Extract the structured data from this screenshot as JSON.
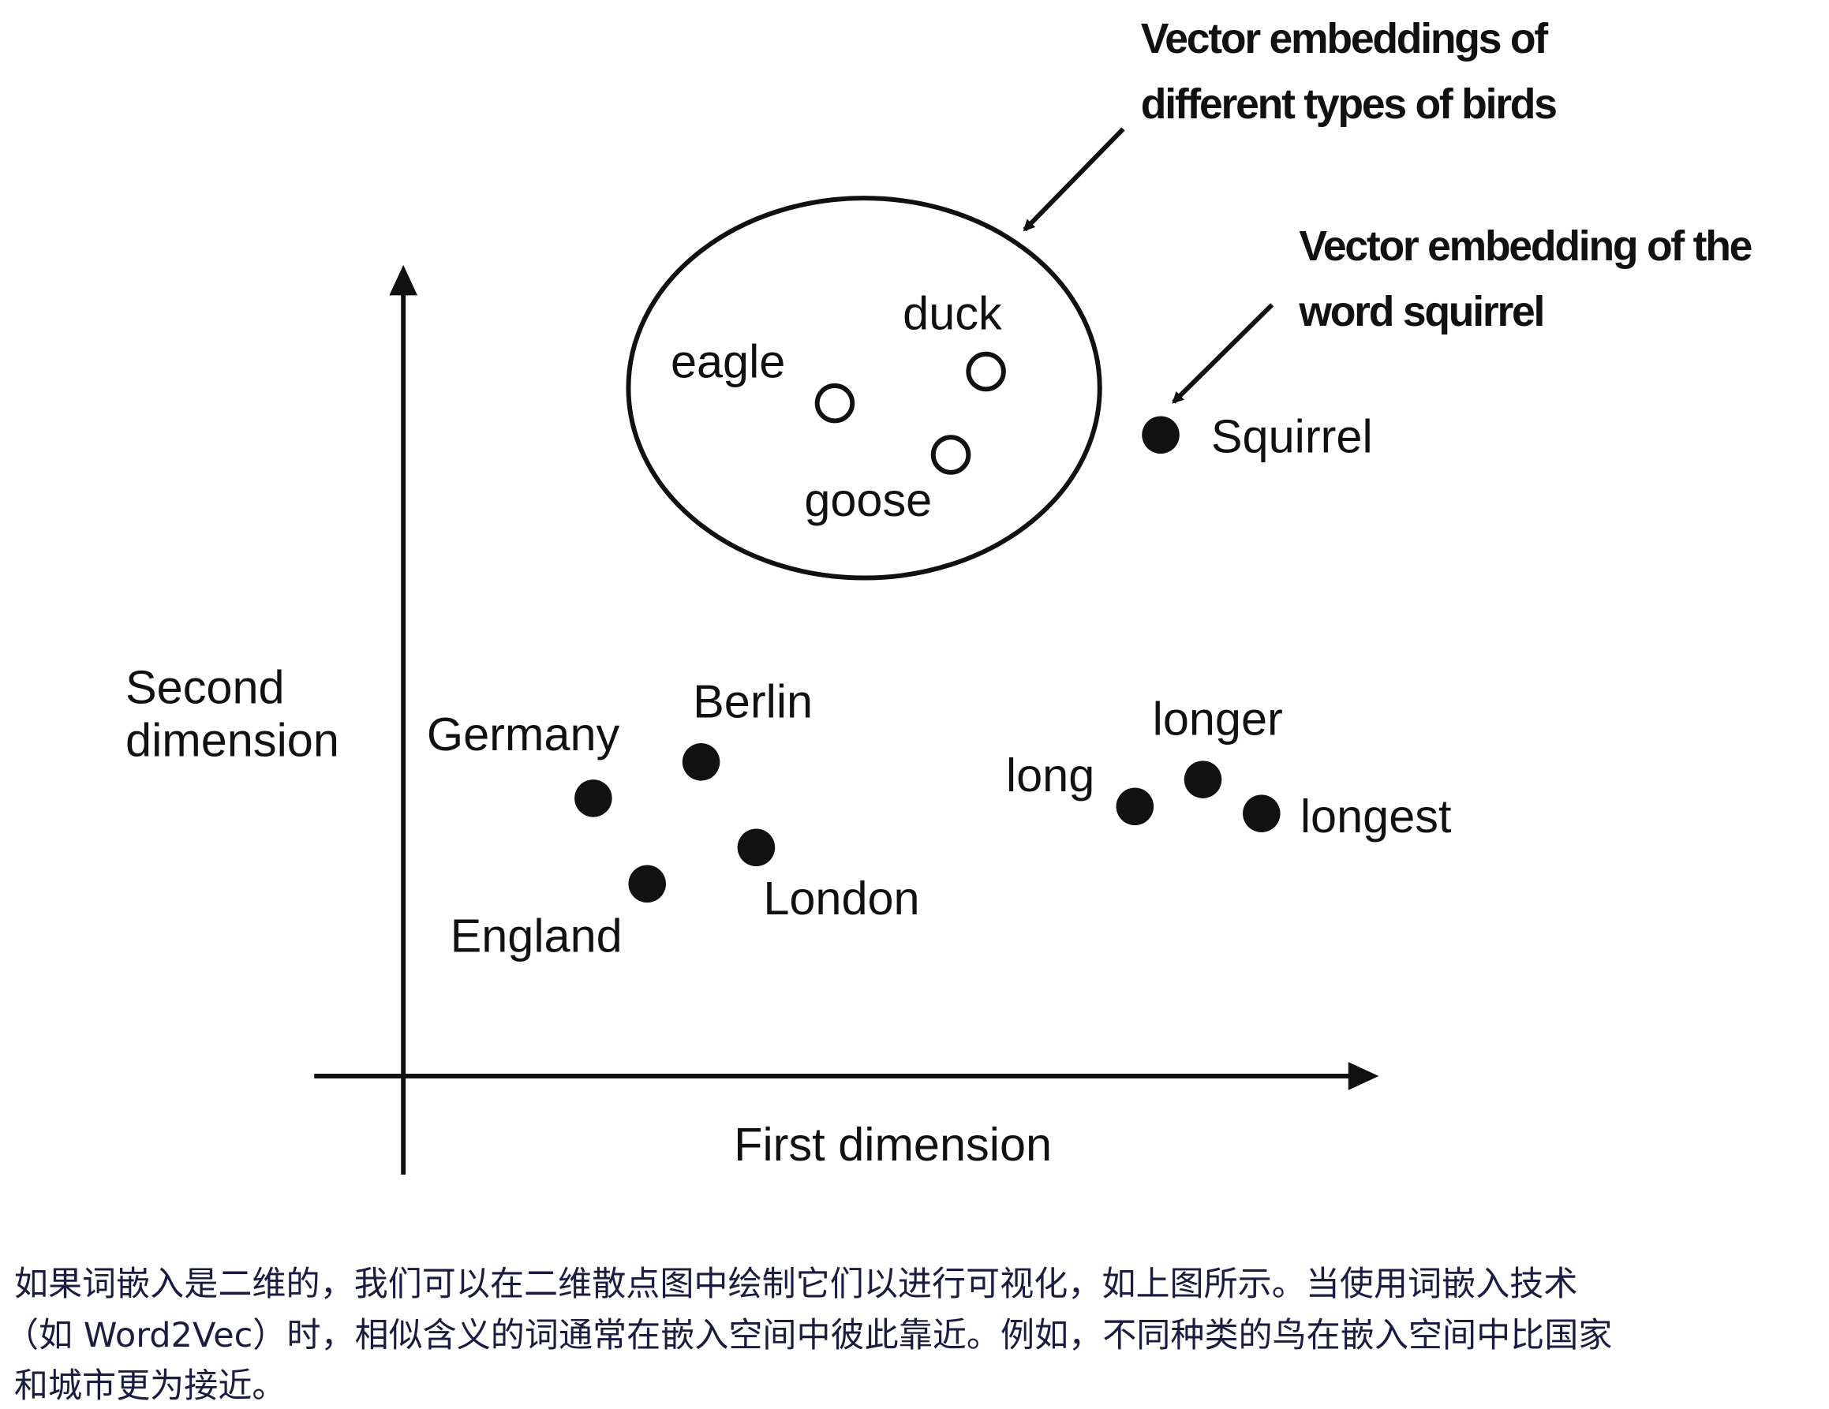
{
  "diagram": {
    "x_axis_label": "First dimension",
    "y_axis_label": [
      "Second",
      "dimension"
    ],
    "annotations": {
      "birds": [
        "Vector embeddings of",
        "different types of birds"
      ],
      "squirrel": [
        "Vector embedding of the",
        "word squirrel"
      ]
    },
    "points": [
      {
        "label": "eagle",
        "style": "open"
      },
      {
        "label": "duck",
        "style": "open"
      },
      {
        "label": "goose",
        "style": "open"
      },
      {
        "label": "Squirrel",
        "style": "filled"
      },
      {
        "label": "Germany",
        "style": "filled"
      },
      {
        "label": "Berlin",
        "style": "filled"
      },
      {
        "label": "London",
        "style": "filled"
      },
      {
        "label": "England",
        "style": "filled"
      },
      {
        "label": "long",
        "style": "filled"
      },
      {
        "label": "longer",
        "style": "filled"
      },
      {
        "label": "longest",
        "style": "filled"
      }
    ]
  },
  "caption": [
    "如果词嵌入是二维的，我们可以在二维散点图中绘制它们以进行可视化，如上图所示。当使用词嵌入技术",
    "（如 Word2Vec）时，相似含义的词通常在嵌入空间中彼此靠近。例如，不同种类的鸟在嵌入空间中比国家",
    "和城市更为接近。"
  ]
}
